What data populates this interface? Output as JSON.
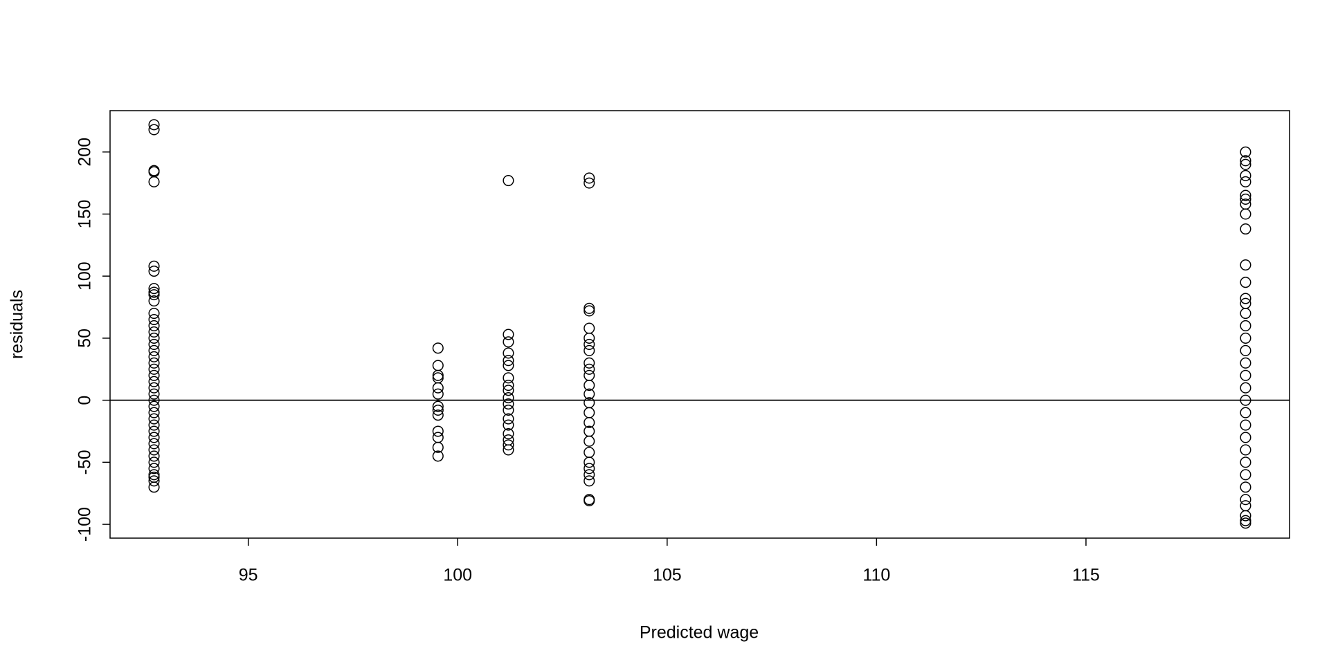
{
  "chart_data": {
    "type": "scatter",
    "x_label": "Predicted wage",
    "y_label": "residuals",
    "xlim": [
      91.7,
      119.86
    ],
    "ylim": [
      -111.1,
      233.3
    ],
    "xticks": [
      95,
      100,
      105,
      110,
      115
    ],
    "yticks": [
      -100,
      -50,
      0,
      50,
      100,
      150,
      200
    ],
    "hline": 0,
    "color": "#000000",
    "x": [
      92.75,
      92.75,
      92.75,
      92.75,
      92.75,
      92.75,
      92.75,
      92.75,
      92.75,
      92.75,
      92.75,
      92.75,
      92.75,
      92.75,
      92.75,
      92.75,
      92.75,
      92.75,
      92.75,
      92.75,
      92.75,
      92.75,
      92.75,
      92.75,
      92.75,
      92.75,
      92.75,
      92.75,
      92.75,
      92.75,
      92.75,
      92.75,
      92.75,
      92.75,
      92.75,
      92.75,
      92.75,
      92.75,
      92.75,
      92.75,
      92.75,
      99.53,
      99.53,
      99.53,
      99.53,
      99.53,
      99.53,
      99.53,
      99.53,
      99.53,
      99.53,
      99.53,
      99.53,
      99.53,
      101.21,
      101.21,
      101.21,
      101.21,
      101.21,
      101.21,
      101.21,
      101.21,
      101.21,
      101.21,
      101.21,
      101.21,
      101.21,
      101.21,
      101.21,
      101.21,
      101.21,
      101.21,
      103.14,
      103.14,
      103.14,
      103.14,
      103.14,
      103.14,
      103.14,
      103.14,
      103.14,
      103.14,
      103.14,
      103.14,
      103.14,
      103.14,
      103.14,
      103.14,
      103.14,
      103.14,
      103.14,
      103.14,
      103.14,
      103.14,
      103.14,
      103.14,
      103.14,
      118.81,
      118.81,
      118.81,
      118.81,
      118.81,
      118.81,
      118.81,
      118.81,
      118.81,
      118.81,
      118.81,
      118.81,
      118.81,
      118.81,
      118.81,
      118.81,
      118.81,
      118.81,
      118.81,
      118.81,
      118.81,
      118.81,
      118.81,
      118.81,
      118.81,
      118.81,
      118.81,
      118.81,
      118.81,
      118.81,
      118.81,
      118.81,
      118.81,
      118.81
    ],
    "y": [
      222,
      218,
      185,
      184,
      176,
      108,
      104,
      90,
      87,
      85,
      80,
      70,
      65,
      60,
      55,
      50,
      45,
      40,
      35,
      30,
      25,
      20,
      15,
      10,
      5,
      0,
      -5,
      -10,
      -15,
      -20,
      -25,
      -30,
      -35,
      -40,
      -45,
      -50,
      -55,
      -60,
      -62,
      -65,
      -70,
      42,
      28,
      20,
      18,
      10,
      5,
      -5,
      -8,
      -12,
      -25,
      -30,
      -38,
      -45,
      177,
      53,
      47,
      38,
      32,
      28,
      18,
      12,
      8,
      2,
      -3,
      -8,
      -15,
      -20,
      -27,
      -32,
      -36,
      -40,
      179,
      175,
      74,
      72,
      58,
      50,
      45,
      40,
      30,
      25,
      20,
      12,
      5,
      -2,
      -10,
      -18,
      -25,
      -33,
      -42,
      -50,
      -55,
      -60,
      -65,
      -80,
      -81,
      200,
      193,
      190,
      181,
      176,
      165,
      162,
      158,
      150,
      138,
      109,
      95,
      82,
      78,
      70,
      60,
      50,
      40,
      30,
      20,
      10,
      0,
      -10,
      -20,
      -30,
      -40,
      -50,
      -60,
      -70,
      -80,
      -85,
      -93,
      -97,
      -99
    ]
  }
}
